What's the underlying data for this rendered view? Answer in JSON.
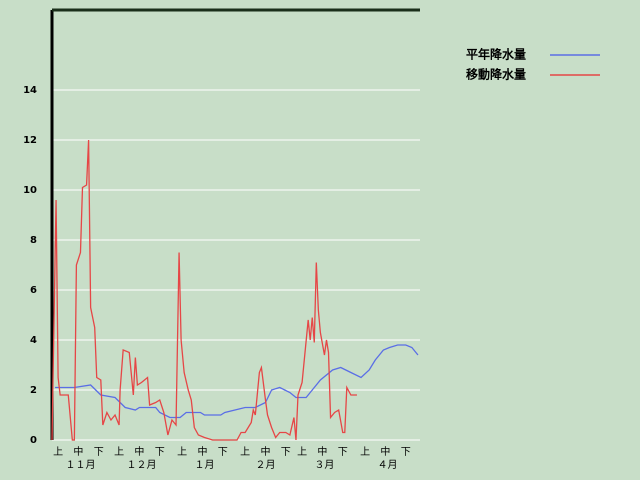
{
  "chart_data": {
    "type": "line",
    "xlim": [
      0,
      181
    ],
    "ylim": [
      0,
      17.2
    ],
    "yticks": [
      0,
      2,
      4,
      6,
      8,
      10,
      12,
      14
    ],
    "grid": true,
    "xticks": [
      {
        "value": 3,
        "label": "上"
      },
      {
        "value": 13,
        "label": "中"
      },
      {
        "value": 23,
        "label": "下"
      },
      {
        "value": 33,
        "label": "上"
      },
      {
        "value": 43,
        "label": "中"
      },
      {
        "value": 53,
        "label": "下"
      },
      {
        "value": 64,
        "label": "上"
      },
      {
        "value": 74,
        "label": "中"
      },
      {
        "value": 84,
        "label": "下"
      },
      {
        "value": 95,
        "label": "上"
      },
      {
        "value": 105,
        "label": "中"
      },
      {
        "value": 115,
        "label": "下"
      },
      {
        "value": 123,
        "label": "上"
      },
      {
        "value": 133,
        "label": "中"
      },
      {
        "value": 143,
        "label": "下"
      },
      {
        "value": 154,
        "label": "上"
      },
      {
        "value": 164,
        "label": "中"
      },
      {
        "value": 174,
        "label": "下"
      }
    ],
    "month_labels": [
      {
        "value": 14,
        "label": "１１月"
      },
      {
        "value": 44,
        "label": "１２月"
      },
      {
        "value": 75,
        "label": "１月"
      },
      {
        "value": 105,
        "label": "２月"
      },
      {
        "value": 134,
        "label": "３月"
      },
      {
        "value": 165,
        "label": "４月"
      }
    ],
    "legend": "top-right",
    "series": [
      {
        "name": "平年降水量",
        "color": "#5a6ee6",
        "x": [
          1.5,
          11,
          19,
          24,
          31,
          36,
          41,
          43,
          51,
          53,
          58,
          63,
          66,
          73,
          75,
          83,
          85,
          90,
          95,
          100,
          105,
          108,
          112,
          117,
          120,
          125,
          127,
          132,
          138,
          142,
          147,
          152,
          156,
          159,
          163,
          166,
          170,
          174,
          177,
          180
        ],
        "values": [
          2.1,
          2.1,
          2.2,
          1.8,
          1.7,
          1.3,
          1.2,
          1.3,
          1.3,
          1.1,
          0.9,
          0.9,
          1.1,
          1.1,
          1.0,
          1.0,
          1.1,
          1.2,
          1.3,
          1.3,
          1.5,
          2.0,
          2.1,
          1.9,
          1.7,
          1.7,
          1.9,
          2.4,
          2.8,
          2.9,
          2.7,
          2.5,
          2.8,
          3.2,
          3.6,
          3.7,
          3.8,
          3.8,
          3.7,
          3.4
        ]
      },
      {
        "name": "移動降水量",
        "color": "#e64646",
        "x": [
          0,
          2,
          3,
          4,
          8,
          10,
          11,
          12,
          14,
          15,
          17,
          18,
          19,
          21,
          22,
          24,
          25,
          27,
          29,
          31,
          33,
          33.5,
          35,
          38,
          40,
          41,
          42,
          44,
          47,
          48,
          51,
          53,
          55,
          57,
          59,
          61,
          62.5,
          63.5,
          65,
          67,
          68.5,
          70,
          72,
          75,
          79,
          91,
          93,
          95,
          98,
          99,
          100,
          102,
          103,
          105,
          106,
          108,
          110,
          112,
          115,
          117,
          119,
          120,
          121,
          123,
          126,
          127,
          128,
          129,
          130,
          131,
          132,
          134,
          135,
          136,
          137,
          139,
          141,
          143,
          144,
          145,
          147,
          150
        ],
        "values": [
          0,
          9.6,
          2.5,
          1.8,
          1.8,
          0,
          0,
          7.0,
          7.5,
          10.1,
          10.2,
          12.0,
          5.3,
          4.5,
          2.5,
          2.4,
          0.6,
          1.1,
          0.8,
          1.0,
          0.6,
          2.0,
          3.6,
          3.5,
          1.8,
          3.3,
          2.2,
          2.3,
          2.5,
          1.4,
          1.5,
          1.6,
          1.1,
          0.2,
          0.8,
          0.6,
          7.5,
          4.0,
          2.7,
          2.0,
          1.6,
          0.5,
          0.2,
          0.1,
          0,
          0,
          0.3,
          0.3,
          0.7,
          1.2,
          1.0,
          2.7,
          2.9,
          1.6,
          1.0,
          0.5,
          0.1,
          0.3,
          0.3,
          0.2,
          0.9,
          0,
          1.8,
          2.3,
          4.8,
          4.0,
          4.9,
          3.9,
          7.1,
          5.2,
          4.3,
          3.4,
          4.0,
          3.5,
          0.9,
          1.1,
          1.2,
          0.3,
          0.3,
          2.1,
          1.8,
          1.8
        ]
      }
    ]
  }
}
